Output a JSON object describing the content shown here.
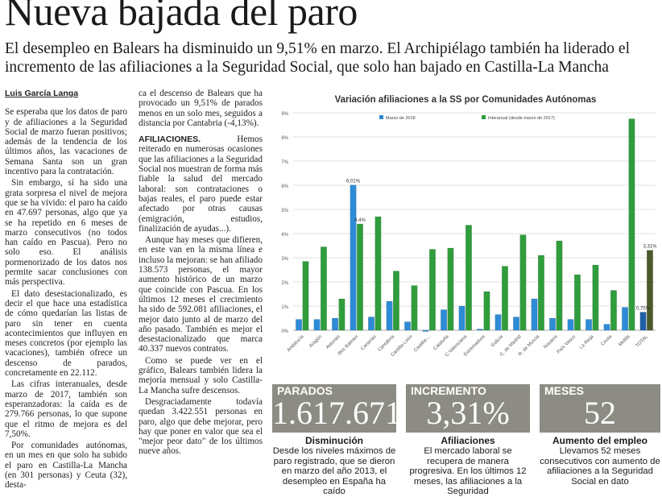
{
  "headline": "Nueva bajada del paro",
  "subhead": "El desempleo en Balears ha disminuido un 9,51% en marzo. El Archipiélago también ha liderado el incremento de las afiliaciones a la Seguridad Social, que solo han bajado en Castilla-La Mancha",
  "byline": "Luis García Langa",
  "col1": [
    "Se esperaba que los datos de paro y de afiliaciones a la Seguridad Social de marzo fueran positivos; además de la tendencia de los últimos años, las vacaciones de Semana Santa son un gran incentivo para la contratación.",
    "Sin embargo, sí ha sido una grata sorpresa el nivel de mejora que se ha vivido: el paro ha caído en 47.697 personas, algo que ya se ha repetido en 6 meses de marzo consecutivos (no todos han caído en Pascua). Pero no solo eso. El análisis pormenorizado de los datos nos permite sacar conclusiones con más perspectiva.",
    "El dato desestacionalizado, es decir el que hace una estadística de cómo quedarían las listas de paro sin tener en cuenta acontecimientos que influyen en meses concretos (por ejemplo las vacaciones), también ofrece un descenso de parados, concretamente en 22.112.",
    "Las cifras interanuales, desde marzo de 2017, también son esperanzadoras: la caída es de 279.766 personas, lo que supone que el ritmo de mejora es del 7,50%.",
    "Por comunidades autónomas, en un mes en que solo ha subido el paro en Castilla-La Mancha (en 301 personas) y Ceuta (32), desta-"
  ],
  "col2_intro": "ca el descenso de Balears que ha provocado un 9,51% de parados menos en un solo mes, seguidos a distancia por Cantabria (-4,13%).",
  "col2_kicker": "AFILIACIONES.",
  "col2": [
    "Hemos reiterado en numerosas ocasiones que las afiliaciones a la Seguridad Social nos muestran de forma más fiable la salud del mercado laboral: son contrataciones o bajas reales, el paro puede estar afectado por otras causas (emigración, estudios, finalización de ayudas...).",
    "Aunque hay meses que difieren, en este van en la misma línea e incluso la mejoran: se han afiliado 138.573 personas, el mayor aumento histórico de un marzo que coincide con Pascua. En los últimos 12 meses el crecimiento ha sido de 592.081 afiliaciones, el mejor dato junto al de marzo del año pasado. También es mejor el desestacionalizado que marca 40.337 nuevos contratos.",
    "Como se puede ver en el gráfico, Balears también lidera la mejoría mensual y solo Castilla-La Mancha sufre descensos.",
    "Desgraciadamente todavía quedan 3.422.551 personas en paro, algo que debe mejorar, pero hay que poner en valor que sea el \"mejor peor dato\" de los últimos nueve años."
  ],
  "chart_data": {
    "type": "bar",
    "title": "Variación afiliaciones a la SS por Comunidades Autónomas",
    "legend_position": "top",
    "grid": true,
    "ylim": [
      0,
      9
    ],
    "yticks": [
      "0%",
      "1%",
      "2%",
      "3%",
      "4%",
      "5%",
      "6%",
      "7%",
      "8%",
      "9%"
    ],
    "categories": [
      "Andalucía",
      "Aragón",
      "Asturias",
      "Illes Balears",
      "Canarias",
      "Cantabria",
      "Castilla-León",
      "Castilla-...",
      "Cataluña",
      "C.Valenciana",
      "Extremadura",
      "Galicia",
      "C. de Madrid",
      "R. de Murcia",
      "Navarra",
      "País Vasco",
      "La Rioja",
      "Ceuta",
      "Melilla",
      "TOTAL"
    ],
    "series": [
      {
        "name": "Marzo de 2018",
        "color": "#2e8bd6",
        "values": [
          0.45,
          0.45,
          0.5,
          6.01,
          0.55,
          1.2,
          0.35,
          -0.05,
          0.85,
          1.0,
          0.05,
          0.65,
          0.55,
          1.3,
          0.5,
          0.45,
          0.45,
          0.25,
          0.95,
          0.75
        ]
      },
      {
        "name": "Interanual (desde marzo de 2017)",
        "color": "#2f9d3c",
        "values": [
          2.85,
          3.45,
          1.3,
          4.4,
          4.7,
          2.45,
          1.85,
          3.35,
          3.4,
          4.35,
          1.6,
          2.65,
          3.95,
          3.1,
          3.7,
          2.3,
          2.7,
          1.65,
          8.75,
          3.31
        ]
      }
    ],
    "data_labels": [
      {
        "series": 0,
        "index": 3,
        "text": "6,01%"
      },
      {
        "series": 1,
        "index": 3,
        "text": "4,4%"
      },
      {
        "series": 0,
        "index": 19,
        "text": "0,75%"
      },
      {
        "series": 1,
        "index": 19,
        "text": "3,31%"
      }
    ],
    "total_color": "#4a5a2a"
  },
  "stats": [
    {
      "label": "PARADOS",
      "value": "1.617.671",
      "title": "Disminución",
      "text": "Desde los niveles máximos de paro registrado, que se dieron en marzo del año 2013, el desempleo en España ha caído"
    },
    {
      "label": "INCREMENTO",
      "value": "3,31%",
      "title": "Afiliaciones",
      "text": "El mercado laboral se recupera de manera progresiva. En los últimos 12 meses, las afiliaciones a la Seguridad"
    },
    {
      "label": "MESES",
      "value": "52",
      "title": "Aumento del empleo",
      "text": "Llevamos 52 meses consecutivos con aumento de afiliaciones a la Seguridad Social en dato"
    }
  ]
}
